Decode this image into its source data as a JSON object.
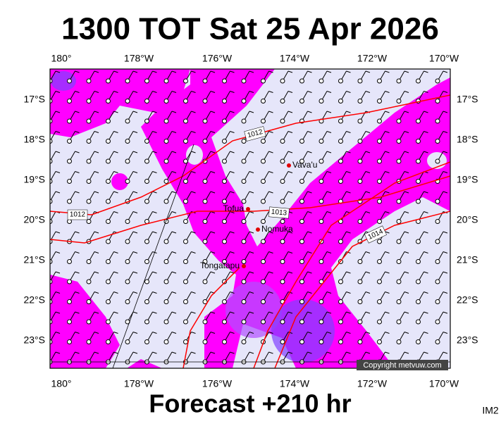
{
  "header": {
    "title": "1300 TOT Sat 25 Apr 2026",
    "subtitle": "Forecast +210 hr"
  },
  "longitude_labels": [
    "180°",
    "178°W",
    "176°W",
    "174°W",
    "172°W",
    "170°W"
  ],
  "latitude_labels": [
    "17°S",
    "18°S",
    "19°S",
    "20°S",
    "21°S",
    "22°S",
    "23°S"
  ],
  "places": [
    "Vava'u",
    "Tofua",
    "Nomuka",
    "Tongatapu"
  ],
  "isobar_labels": [
    "1012",
    "1012",
    "1013",
    "1014"
  ],
  "copyright": "Copyright metvuw.com",
  "corner_label": "IM2"
}
